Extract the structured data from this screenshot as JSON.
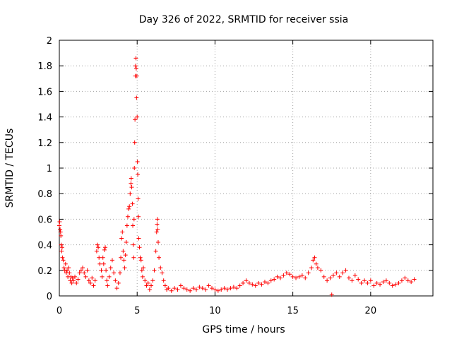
{
  "chart_data": {
    "type": "scatter",
    "title": "Day 326 of 2022, SRMTID for receiver ssia",
    "xlabel": "GPS time / hours",
    "ylabel": "SRMTID / TECUs",
    "xlim": [
      0,
      24
    ],
    "ylim": [
      0,
      2
    ],
    "xticks": [
      0,
      5,
      10,
      15,
      20
    ],
    "xtick_labels": [
      "0",
      "5",
      "10",
      "15",
      "20"
    ],
    "yticks": [
      0,
      0.2,
      0.4,
      0.6,
      0.8,
      1,
      1.2,
      1.4,
      1.6,
      1.8,
      2
    ],
    "ytick_labels": [
      "0",
      "0.2",
      "0.4",
      "0.6",
      "0.8",
      "1",
      "1.2",
      "1.4",
      "1.6",
      "1.8",
      "2"
    ],
    "grid": true,
    "marker": "+",
    "color": "#ff0000",
    "series": [
      {
        "name": "SRMTID",
        "points": [
          [
            0.0,
            0.55
          ],
          [
            0.02,
            0.58
          ],
          [
            0.05,
            0.52
          ],
          [
            0.08,
            0.5
          ],
          [
            0.1,
            0.47
          ],
          [
            0.12,
            0.4
          ],
          [
            0.15,
            0.35
          ],
          [
            0.18,
            0.38
          ],
          [
            0.2,
            0.3
          ],
          [
            0.25,
            0.28
          ],
          [
            0.3,
            0.22
          ],
          [
            0.35,
            0.2
          ],
          [
            0.4,
            0.25
          ],
          [
            0.45,
            0.18
          ],
          [
            0.5,
            0.2
          ],
          [
            0.55,
            0.15
          ],
          [
            0.6,
            0.22
          ],
          [
            0.65,
            0.18
          ],
          [
            0.7,
            0.12
          ],
          [
            0.75,
            0.15
          ],
          [
            0.8,
            0.1
          ],
          [
            0.85,
            0.14
          ],
          [
            0.9,
            0.12
          ],
          [
            1.0,
            0.15
          ],
          [
            1.1,
            0.1
          ],
          [
            1.2,
            0.13
          ],
          [
            1.3,
            0.18
          ],
          [
            1.4,
            0.2
          ],
          [
            1.5,
            0.22
          ],
          [
            1.6,
            0.18
          ],
          [
            1.7,
            0.15
          ],
          [
            1.8,
            0.2
          ],
          [
            1.9,
            0.12
          ],
          [
            2.0,
            0.1
          ],
          [
            2.1,
            0.14
          ],
          [
            2.2,
            0.08
          ],
          [
            2.3,
            0.12
          ],
          [
            2.4,
            0.35
          ],
          [
            2.45,
            0.4
          ],
          [
            2.5,
            0.38
          ],
          [
            2.55,
            0.3
          ],
          [
            2.6,
            0.25
          ],
          [
            2.7,
            0.2
          ],
          [
            2.75,
            0.15
          ],
          [
            2.8,
            0.3
          ],
          [
            2.85,
            0.25
          ],
          [
            2.9,
            0.36
          ],
          [
            2.95,
            0.38
          ],
          [
            3.0,
            0.2
          ],
          [
            3.05,
            0.12
          ],
          [
            3.1,
            0.08
          ],
          [
            3.2,
            0.15
          ],
          [
            3.3,
            0.22
          ],
          [
            3.4,
            0.28
          ],
          [
            3.5,
            0.18
          ],
          [
            3.6,
            0.12
          ],
          [
            3.7,
            0.06
          ],
          [
            3.8,
            0.1
          ],
          [
            3.9,
            0.18
          ],
          [
            3.95,
            0.3
          ],
          [
            4.0,
            0.45
          ],
          [
            4.05,
            0.5
          ],
          [
            4.1,
            0.35
          ],
          [
            4.15,
            0.28
          ],
          [
            4.2,
            0.22
          ],
          [
            4.25,
            0.32
          ],
          [
            4.3,
            0.42
          ],
          [
            4.35,
            0.55
          ],
          [
            4.4,
            0.62
          ],
          [
            4.45,
            0.68
          ],
          [
            4.5,
            0.7
          ],
          [
            4.55,
            0.8
          ],
          [
            4.6,
            0.88
          ],
          [
            4.62,
            0.92
          ],
          [
            4.65,
            0.85
          ],
          [
            4.7,
            0.72
          ],
          [
            4.72,
            0.55
          ],
          [
            4.75,
            0.4
          ],
          [
            4.78,
            0.3
          ],
          [
            4.8,
            0.6
          ],
          [
            4.82,
            1.0
          ],
          [
            4.84,
            1.2
          ],
          [
            4.86,
            1.38
          ],
          [
            4.88,
            1.72
          ],
          [
            4.9,
            1.8
          ],
          [
            4.92,
            1.86
          ],
          [
            4.94,
            1.78
          ],
          [
            4.96,
            1.55
          ],
          [
            4.98,
            1.72
          ],
          [
            5.0,
            1.4
          ],
          [
            5.02,
            1.05
          ],
          [
            5.04,
            0.95
          ],
          [
            5.06,
            0.76
          ],
          [
            5.08,
            0.62
          ],
          [
            5.1,
            0.45
          ],
          [
            5.15,
            0.38
          ],
          [
            5.2,
            0.3
          ],
          [
            5.25,
            0.28
          ],
          [
            5.3,
            0.2
          ],
          [
            5.35,
            0.15
          ],
          [
            5.4,
            0.22
          ],
          [
            5.5,
            0.12
          ],
          [
            5.6,
            0.08
          ],
          [
            5.7,
            0.1
          ],
          [
            5.8,
            0.05
          ],
          [
            5.9,
            0.08
          ],
          [
            6.0,
            0.12
          ],
          [
            6.1,
            0.2
          ],
          [
            6.2,
            0.35
          ],
          [
            6.25,
            0.5
          ],
          [
            6.28,
            0.56
          ],
          [
            6.3,
            0.6
          ],
          [
            6.32,
            0.52
          ],
          [
            6.35,
            0.42
          ],
          [
            6.4,
            0.3
          ],
          [
            6.5,
            0.22
          ],
          [
            6.6,
            0.18
          ],
          [
            6.7,
            0.12
          ],
          [
            6.8,
            0.08
          ],
          [
            6.9,
            0.05
          ],
          [
            7.0,
            0.06
          ],
          [
            7.2,
            0.04
          ],
          [
            7.4,
            0.06
          ],
          [
            7.6,
            0.05
          ],
          [
            7.8,
            0.08
          ],
          [
            8.0,
            0.06
          ],
          [
            8.2,
            0.05
          ],
          [
            8.4,
            0.04
          ],
          [
            8.6,
            0.06
          ],
          [
            8.8,
            0.05
          ],
          [
            9.0,
            0.07
          ],
          [
            9.2,
            0.06
          ],
          [
            9.4,
            0.05
          ],
          [
            9.6,
            0.08
          ],
          [
            9.8,
            0.06
          ],
          [
            10.0,
            0.05
          ],
          [
            10.2,
            0.04
          ],
          [
            10.4,
            0.05
          ],
          [
            10.6,
            0.06
          ],
          [
            10.8,
            0.05
          ],
          [
            11.0,
            0.06
          ],
          [
            11.2,
            0.07
          ],
          [
            11.4,
            0.06
          ],
          [
            11.6,
            0.08
          ],
          [
            11.8,
            0.1
          ],
          [
            12.0,
            0.12
          ],
          [
            12.2,
            0.1
          ],
          [
            12.4,
            0.09
          ],
          [
            12.6,
            0.08
          ],
          [
            12.8,
            0.1
          ],
          [
            13.0,
            0.09
          ],
          [
            13.2,
            0.11
          ],
          [
            13.4,
            0.1
          ],
          [
            13.6,
            0.12
          ],
          [
            13.8,
            0.13
          ],
          [
            14.0,
            0.15
          ],
          [
            14.2,
            0.14
          ],
          [
            14.4,
            0.16
          ],
          [
            14.6,
            0.18
          ],
          [
            14.8,
            0.17
          ],
          [
            15.0,
            0.15
          ],
          [
            15.2,
            0.14
          ],
          [
            15.4,
            0.15
          ],
          [
            15.6,
            0.16
          ],
          [
            15.8,
            0.14
          ],
          [
            16.0,
            0.18
          ],
          [
            16.2,
            0.22
          ],
          [
            16.3,
            0.28
          ],
          [
            16.4,
            0.3
          ],
          [
            16.5,
            0.25
          ],
          [
            16.6,
            0.22
          ],
          [
            16.8,
            0.2
          ],
          [
            17.0,
            0.15
          ],
          [
            17.2,
            0.12
          ],
          [
            17.4,
            0.14
          ],
          [
            17.5,
            0.01
          ],
          [
            17.6,
            0.16
          ],
          [
            17.8,
            0.18
          ],
          [
            18.0,
            0.15
          ],
          [
            18.2,
            0.18
          ],
          [
            18.4,
            0.2
          ],
          [
            18.6,
            0.14
          ],
          [
            18.8,
            0.12
          ],
          [
            19.0,
            0.16
          ],
          [
            19.2,
            0.13
          ],
          [
            19.4,
            0.1
          ],
          [
            19.6,
            0.12
          ],
          [
            19.8,
            0.1
          ],
          [
            20.0,
            0.12
          ],
          [
            20.2,
            0.08
          ],
          [
            20.4,
            0.1
          ],
          [
            20.6,
            0.09
          ],
          [
            20.8,
            0.11
          ],
          [
            21.0,
            0.12
          ],
          [
            21.2,
            0.1
          ],
          [
            21.4,
            0.08
          ],
          [
            21.6,
            0.09
          ],
          [
            21.8,
            0.1
          ],
          [
            22.0,
            0.12
          ],
          [
            22.2,
            0.14
          ],
          [
            22.4,
            0.12
          ],
          [
            22.6,
            0.11
          ],
          [
            22.8,
            0.13
          ]
        ]
      }
    ]
  }
}
